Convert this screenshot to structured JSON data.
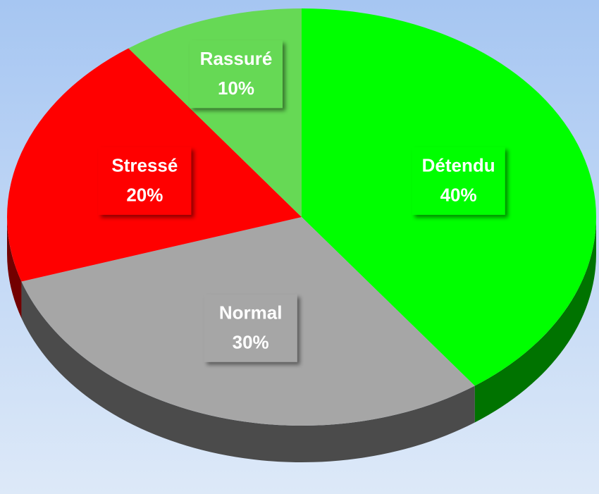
{
  "chart_data": {
    "type": "pie",
    "categories": [
      "Détendu",
      "Normal",
      "Stressé",
      "Rassuré"
    ],
    "values": [
      40,
      30,
      20,
      10
    ],
    "value_labels": [
      "40%",
      "30%",
      "20%",
      "10%"
    ],
    "colors": [
      "#00ff00",
      "#a6a6a6",
      "#ff0000",
      "#66d955"
    ]
  }
}
